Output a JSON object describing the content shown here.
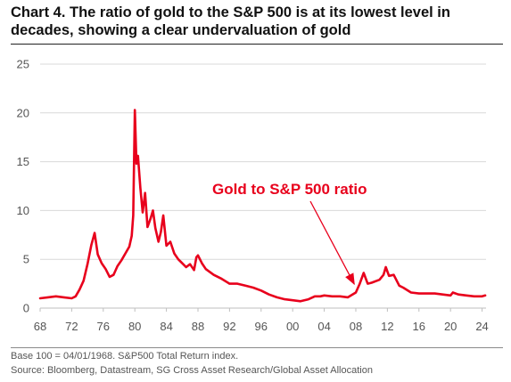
{
  "title": "Chart 4. The ratio of gold to the S&P 500 is at its lowest level in decades, showing a clear undervaluation of gold",
  "footnotes": {
    "base": "Base 100 = 04/01/1968. S&P500 Total Return index.",
    "source": "Source: Bloomberg, Datastream, SG Cross Asset Research/Global Asset Allocation"
  },
  "colors": {
    "series": "#e8001c",
    "grid": "#d9d9d9",
    "axis_text": "#555555"
  },
  "chart_data": {
    "type": "line",
    "title": "Chart 4. The ratio of gold to the S&P 500 is at its lowest level in decades, showing a clear undervaluation of gold",
    "xlabel": "",
    "ylabel": "",
    "xlim": [
      1968,
      2024.5
    ],
    "ylim": [
      0,
      25
    ],
    "grid": "horizontal",
    "legend": "none",
    "x_ticks": [
      "68",
      "72",
      "76",
      "80",
      "84",
      "88",
      "92",
      "96",
      "00",
      "04",
      "08",
      "12",
      "16",
      "20",
      "24"
    ],
    "y_ticks": [
      0,
      5,
      10,
      15,
      20,
      25
    ],
    "series": [
      {
        "name": "Gold to S&P 500 ratio",
        "x": [
          1968.0,
          1969.0,
          1970.0,
          1971.0,
          1972.0,
          1972.5,
          1973.0,
          1973.5,
          1974.0,
          1974.5,
          1974.9,
          1975.3,
          1975.8,
          1976.3,
          1976.8,
          1977.3,
          1977.8,
          1978.3,
          1978.8,
          1979.3,
          1979.6,
          1979.8,
          1980.0,
          1980.2,
          1980.4,
          1980.7,
          1981.0,
          1981.3,
          1981.6,
          1982.0,
          1982.3,
          1982.6,
          1983.0,
          1983.3,
          1983.6,
          1984.0,
          1984.5,
          1985.0,
          1985.5,
          1986.0,
          1986.5,
          1987.0,
          1987.5,
          1987.8,
          1988.0,
          1988.5,
          1989.0,
          1990.0,
          1991.0,
          1992.0,
          1993.0,
          1994.0,
          1995.0,
          1996.0,
          1997.0,
          1998.0,
          1999.0,
          2000.0,
          2001.0,
          2002.0,
          2002.8,
          2003.5,
          2004.0,
          2005.0,
          2006.0,
          2007.0,
          2008.0,
          2008.5,
          2009.0,
          2009.5,
          2010.0,
          2011.0,
          2011.5,
          2011.8,
          2012.2,
          2012.8,
          2013.5,
          2014.0,
          2015.0,
          2016.0,
          2017.0,
          2018.0,
          2019.0,
          2020.0,
          2020.3,
          2021.0,
          2022.0,
          2023.0,
          2024.0,
          2024.4
        ],
        "y": [
          1.0,
          1.1,
          1.2,
          1.1,
          1.0,
          1.2,
          1.9,
          2.8,
          4.5,
          6.5,
          7.7,
          5.5,
          4.6,
          4.0,
          3.2,
          3.4,
          4.3,
          4.9,
          5.6,
          6.3,
          7.4,
          9.5,
          20.3,
          14.8,
          15.6,
          12.3,
          9.8,
          11.8,
          8.3,
          9.2,
          10.0,
          8.2,
          6.8,
          7.8,
          9.5,
          6.4,
          6.8,
          5.6,
          5.0,
          4.6,
          4.2,
          4.5,
          3.9,
          5.2,
          5.4,
          4.6,
          4.0,
          3.4,
          3.0,
          2.5,
          2.5,
          2.3,
          2.1,
          1.8,
          1.4,
          1.1,
          0.9,
          0.8,
          0.7,
          0.9,
          1.2,
          1.2,
          1.3,
          1.2,
          1.2,
          1.1,
          1.6,
          2.5,
          3.6,
          2.5,
          2.6,
          2.9,
          3.4,
          4.2,
          3.3,
          3.4,
          2.3,
          2.1,
          1.6,
          1.5,
          1.5,
          1.5,
          1.4,
          1.3,
          1.6,
          1.4,
          1.3,
          1.2,
          1.2,
          1.3
        ]
      }
    ],
    "annotations": [
      {
        "text": "Gold to S&P 500 ratio",
        "target_x": 2007.8,
        "target_y": 2.1
      }
    ]
  }
}
